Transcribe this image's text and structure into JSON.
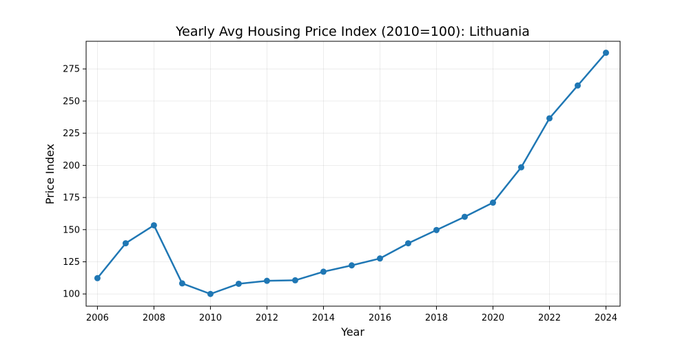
{
  "chart_data": {
    "type": "line",
    "title": "Yearly Avg Housing Price Index (2010=100): Lithuania",
    "xlabel": "Year",
    "ylabel": "Price Index",
    "xlim": [
      2005.6,
      2024.5
    ],
    "ylim": [
      90.5,
      296.5
    ],
    "xticks": [
      2006,
      2008,
      2010,
      2012,
      2014,
      2016,
      2018,
      2020,
      2022,
      2024
    ],
    "yticks": [
      100,
      125,
      150,
      175,
      200,
      225,
      250,
      275
    ],
    "grid": true,
    "series": [
      {
        "color": "#1f77b4",
        "x": [
          2006,
          2007,
          2008,
          2009,
          2010,
          2011,
          2012,
          2013,
          2014,
          2015,
          2016,
          2017,
          2018,
          2019,
          2020,
          2021,
          2022,
          2023,
          2024
        ],
        "y": [
          112.3,
          139.4,
          153.4,
          108.2,
          100.0,
          107.9,
          110.2,
          110.6,
          117.3,
          122.2,
          127.6,
          139.4,
          149.7,
          160.0,
          171.0,
          198.5,
          236.6,
          262.1,
          287.6
        ]
      }
    ]
  }
}
